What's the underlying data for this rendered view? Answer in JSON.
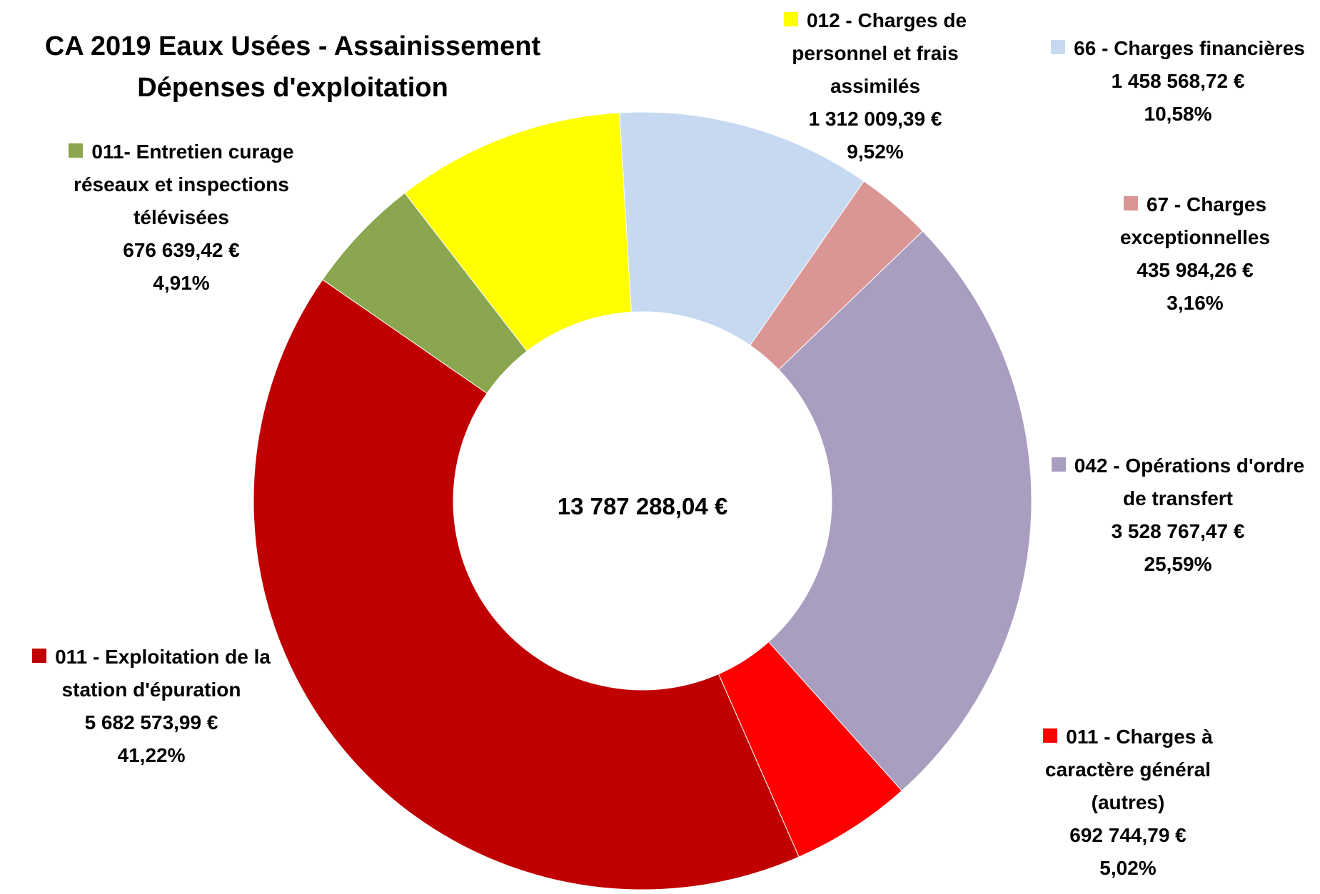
{
  "chart_data": {
    "type": "donut",
    "title": "CA 2019 Eaux Usées - Assainissement Dépenses d'exploitation",
    "categories": [
      "66 - Charges financières",
      "67 - Charges exceptionnelles",
      "042 - Opérations d'ordre de transfert",
      "011 - Charges à caractère général (autres)",
      "011 - Exploitation de la station d'épuration",
      "011- Entretien curage réseaux et inspections télévisées",
      "012 - Charges de personnel et frais assimilés"
    ],
    "values": [
      1458568.72,
      435984.26,
      3528767.47,
      692744.79,
      5682573.99,
      676639.42,
      1312009.39
    ],
    "value_labels": [
      "1 458 568,72 €",
      "435 984,26 €",
      "3 528 767,47 €",
      "692 744,79 €",
      "5 682 573,99 €",
      "676 639,42 €",
      "1 312 009,39 €"
    ],
    "percentages": [
      10.58,
      3.16,
      25.59,
      5.02,
      41.22,
      4.91,
      9.52
    ],
    "percentage_labels": [
      "10,58%",
      "3,16%",
      "25,59%",
      "5,02%",
      "41,22%",
      "4,91%",
      "9,52%"
    ],
    "colors": [
      "#c6d9f1",
      "#d99694",
      "#a99dc0",
      "#ff0000",
      "#c00000",
      "#8aa64e",
      "#ffff00"
    ],
    "total": 13787288.04,
    "total_label": "13 787 288,04 €"
  }
}
